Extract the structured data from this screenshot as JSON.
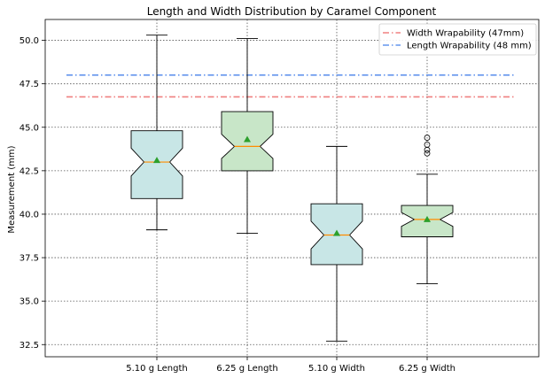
{
  "chart_data": {
    "type": "box",
    "title": "Length and Width Distribution by Caramel Component",
    "xlabel": "",
    "ylabel": "Measurement (mm)",
    "ylim": [
      31.8,
      51.2
    ],
    "yticks": [
      "32.5",
      "35.0",
      "37.5",
      "40.0",
      "42.5",
      "45.0",
      "47.5",
      "50.0"
    ],
    "grid": true,
    "legend_position": "top-right",
    "categories": [
      "5.10 g Length",
      "6.25 g Length",
      "5.10 g Width",
      "6.25 g Width"
    ],
    "boxes": [
      {
        "name": "5.10 g Length",
        "whisker_low": 39.1,
        "q1": 40.9,
        "median": 43.0,
        "q3": 44.8,
        "whisker_high": 50.3,
        "mean": 43.1,
        "notch_low": 42.2,
        "notch_high": 43.8,
        "fliers": [],
        "color": "#c8e6e6"
      },
      {
        "name": "6.25 g Length",
        "whisker_low": 38.9,
        "q1": 42.5,
        "median": 43.9,
        "q3": 45.9,
        "whisker_high": 50.1,
        "mean": 44.3,
        "notch_low": 43.2,
        "notch_high": 44.6,
        "fliers": [],
        "color": "#c8e6c8"
      },
      {
        "name": "5.10 g Width",
        "whisker_low": 32.7,
        "q1": 37.1,
        "median": 38.8,
        "q3": 40.6,
        "whisker_high": 43.9,
        "mean": 38.9,
        "notch_low": 38.0,
        "notch_high": 39.6,
        "fliers": [],
        "color": "#c8e6e6"
      },
      {
        "name": "6.25 g Width",
        "whisker_low": 36.0,
        "q1": 38.7,
        "median": 39.7,
        "q3": 40.5,
        "whisker_high": 42.3,
        "mean": 39.7,
        "notch_low": 39.3,
        "notch_high": 40.1,
        "fliers": [
          44.4,
          44.0,
          43.7,
          43.5
        ],
        "color": "#c8e6c8"
      }
    ],
    "reference_lines": [
      {
        "name": "Width Wrapability (47mm)",
        "y": 46.75,
        "color": "#f08080"
      },
      {
        "name": "Length Wrapability (48 mm)",
        "y": 48.0,
        "color": "#6495ed"
      }
    ],
    "colors": {
      "median": "#ff8c00",
      "mean": "#2ca02c",
      "frame": "#000000"
    }
  }
}
